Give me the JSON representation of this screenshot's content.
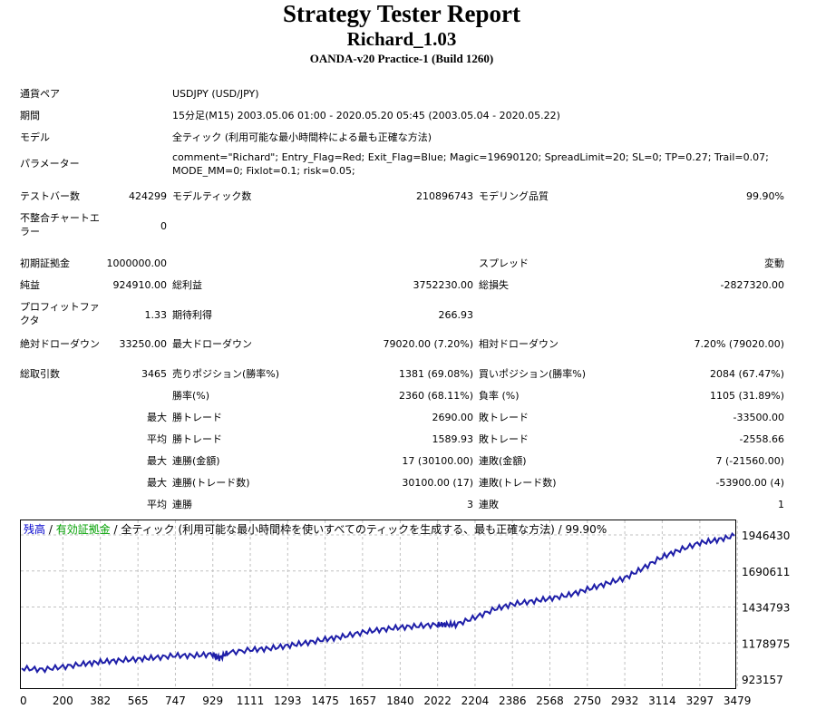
{
  "header": {
    "title": "Strategy Tester Report",
    "subtitle": "Richard_1.03",
    "build": "OANDA-v20 Practice-1 (Build 1260)"
  },
  "settings": {
    "symbol_label": "通貨ペア",
    "symbol_value": "USDJPY (USD/JPY)",
    "period_label": "期間",
    "period_value": "15分足(M15) 2003.05.06 01:00 - 2020.05.20 05:45 (2003.05.04 - 2020.05.22)",
    "model_label": "モデル",
    "model_value": "全ティック (利用可能な最小時間枠による最も正確な方法)",
    "params_label": "パラメーター",
    "params_value": "comment=\"Richard\"; Entry_Flag=Red; Exit_Flag=Blue; Magic=19690120; SpreadLimit=20; SL=0; TP=0.27; Trail=0.07; MODE_MM=0; Fixlot=0.1; risk=0.05;"
  },
  "quality": {
    "bars_label": "テストバー数",
    "bars_value": "424299",
    "ticks_label": "モデルティック数",
    "ticks_value": "210896743",
    "modeling_label": "モデリング品質",
    "modeling_value": "99.90%",
    "mismatch_label": "不整合チャートエラー",
    "mismatch_value": "0"
  },
  "results": {
    "deposit_label": "初期証拠金",
    "deposit_value": "1000000.00",
    "spread_label": "スプレッド",
    "spread_value": "変動",
    "net_label": "純益",
    "net_value": "924910.00",
    "gross_profit_label": "総利益",
    "gross_profit_value": "3752230.00",
    "gross_loss_label": "総損失",
    "gross_loss_value": "-2827320.00",
    "pf_label": "プロフィットファクタ",
    "pf_value": "1.33",
    "payoff_label": "期待利得",
    "payoff_value": "266.93",
    "abs_dd_label": "絶対ドローダウン",
    "abs_dd_value": "33250.00",
    "max_dd_label": "最大ドローダウン",
    "max_dd_value": "79020.00 (7.20%)",
    "rel_dd_label": "相対ドローダウン",
    "rel_dd_value": "7.20% (79020.00)",
    "trades_label": "総取引数",
    "trades_value": "3465",
    "short_label": "売りポジション(勝率%)",
    "short_value": "1381 (69.08%)",
    "long_label": "買いポジション(勝率%)",
    "long_value": "2084 (67.47%)",
    "winrate_label": "勝率(%)",
    "winrate_value": "2360 (68.11%)",
    "lossrate_label": "負率 (%)",
    "lossrate_value": "1105 (31.89%)",
    "max_prefix": "最大",
    "avg_prefix": "平均",
    "largest_win_label": "勝トレード",
    "largest_win_value": "2690.00",
    "largest_loss_label": "敗トレード",
    "largest_loss_value": "-33500.00",
    "avg_win_label": "勝トレード",
    "avg_win_value": "1589.93",
    "avg_loss_label": "敗トレード",
    "avg_loss_value": "-2558.66",
    "cons_wins_amt_label": "連勝(金額)",
    "cons_wins_amt_value": "17 (30100.00)",
    "cons_losses_amt_label": "連敗(金額)",
    "cons_losses_amt_value": "7 (-21560.00)",
    "cons_wins_cnt_label": "連勝(トレード数)",
    "cons_wins_cnt_value": "30100.00 (17)",
    "cons_losses_cnt_label": "連敗(トレード数)",
    "cons_losses_cnt_value": "-53900.00 (4)",
    "avg_cons_wins_label": "連勝",
    "avg_cons_wins_value": "3",
    "avg_cons_losses_label": "連敗",
    "avg_cons_losses_value": "1"
  },
  "chart_data": {
    "type": "line",
    "legend": {
      "balance": "残高",
      "sep": " / ",
      "equity": "有効証拠金",
      "rest": " / 全ティック (利用可能な最小時間枠を使いすべてのティックを生成する、最も正確な方法) / 99.90%"
    },
    "colors": {
      "line": "#1e1ea8",
      "balance": "#0000cc",
      "equity": "#00a000",
      "grid": "#c0c0c0"
    },
    "x_ticks": [
      0,
      200,
      382,
      565,
      747,
      929,
      1111,
      1293,
      1475,
      1657,
      1840,
      2022,
      2204,
      2386,
      2568,
      2750,
      2932,
      3114,
      3297,
      3479
    ],
    "y_ticks": [
      923157,
      1178975,
      1434793,
      1690611,
      1946430
    ],
    "xlim": [
      0,
      3465
    ],
    "ylim": [
      923157,
      1946430
    ],
    "series": [
      {
        "x": [
          0,
          100,
          200,
          300,
          382,
          470,
          565,
          650,
          747,
          840,
          929,
          960,
          1000,
          1111,
          1200,
          1293,
          1380,
          1475,
          1560,
          1657,
          1750,
          1840,
          1930,
          2022,
          2060,
          2110,
          2204,
          2300,
          2386,
          2480,
          2568,
          2660,
          2750,
          2840,
          2932,
          3020,
          3114,
          3200,
          3297,
          3380,
          3465
        ],
        "y": [
          1000000,
          990000,
          1010000,
          1030000,
          1045000,
          1055000,
          1065000,
          1075000,
          1090000,
          1090000,
          1100000,
          1070000,
          1110000,
          1130000,
          1140000,
          1160000,
          1180000,
          1205000,
          1225000,
          1255000,
          1275000,
          1290000,
          1300000,
          1310000,
          1310000,
          1310000,
          1360000,
          1420000,
          1455000,
          1475000,
          1495000,
          1520000,
          1560000,
          1600000,
          1640000,
          1710000,
          1790000,
          1840000,
          1890000,
          1910000,
          1940000
        ]
      }
    ]
  }
}
